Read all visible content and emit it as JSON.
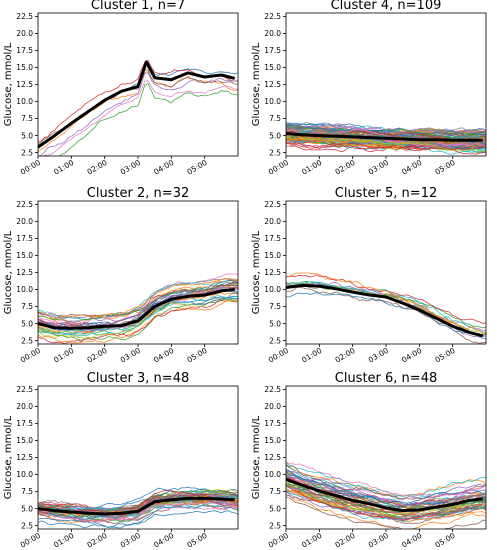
{
  "figure": {
    "background": "#ffffff",
    "mean_line_color": "#000000",
    "member_palette": [
      "#1f77b4",
      "#ff7f0e",
      "#2ca02c",
      "#d62728",
      "#9467bd",
      "#8c564b",
      "#e377c2",
      "#7f7f7f",
      "#bcbd22",
      "#17becf"
    ]
  },
  "chart_data": [
    {
      "type": "line",
      "title": "Cluster 1, n=7",
      "ylabel": "Glucose, mmol/L",
      "xlabel": "",
      "ylim": [
        2.0,
        23.0
      ],
      "yticks": [
        "2.5",
        "5.0",
        "7.5",
        "10.0",
        "12.5",
        "15.0",
        "17.5",
        "20.0",
        "22.5"
      ],
      "xlim": [
        0,
        6
      ],
      "xticks": [
        "00:00",
        "01:00",
        "02:00",
        "03:00",
        "04:00",
        "05:00"
      ],
      "x": [
        0,
        0.5,
        1,
        1.5,
        2,
        2.5,
        3,
        3.25,
        3.5,
        4,
        4.5,
        5,
        5.5,
        5.9
      ],
      "mean": [
        3.3,
        5.0,
        6.8,
        8.5,
        10.2,
        11.5,
        12.2,
        15.8,
        13.5,
        13.2,
        14.2,
        13.6,
        13.9,
        13.4
      ],
      "member_count": 7,
      "member_spread": 1.8
    },
    {
      "type": "line",
      "title": "Cluster 2, n=32",
      "ylabel": "Glucose, mmol/L",
      "xlabel": "",
      "ylim": [
        2.0,
        23.0
      ],
      "yticks": [
        "2.5",
        "5.0",
        "7.5",
        "10.0",
        "12.5",
        "15.0",
        "17.5",
        "20.0",
        "22.5"
      ],
      "xlim": [
        0,
        6
      ],
      "xticks": [
        "00:00",
        "01:00",
        "02:00",
        "03:00",
        "04:00",
        "05:00"
      ],
      "x": [
        0,
        0.5,
        1,
        1.5,
        2,
        2.5,
        3,
        3.5,
        4,
        4.5,
        5,
        5.5,
        5.9
      ],
      "mean": [
        5.0,
        4.4,
        4.3,
        4.4,
        4.6,
        4.7,
        5.4,
        7.5,
        8.6,
        9.0,
        9.2,
        9.8,
        10.0
      ],
      "member_count": 32,
      "member_spread": 1.5
    },
    {
      "type": "line",
      "title": "Cluster 3, n=48",
      "ylabel": "Glucose, mmol/L",
      "xlabel": "",
      "ylim": [
        2.0,
        23.0
      ],
      "yticks": [
        "2.5",
        "5.0",
        "7.5",
        "10.0",
        "12.5",
        "15.0",
        "17.5",
        "20.0",
        "22.5"
      ],
      "xlim": [
        0,
        6
      ],
      "xticks": [
        "00:00",
        "01:00",
        "02:00",
        "03:00",
        "04:00",
        "05:00"
      ],
      "x": [
        0,
        0.5,
        1,
        1.5,
        2,
        2.5,
        3,
        3.5,
        4,
        4.5,
        5,
        5.5,
        5.9
      ],
      "mean": [
        5.0,
        4.7,
        4.5,
        4.3,
        4.2,
        4.3,
        4.6,
        6.0,
        6.3,
        6.5,
        6.5,
        6.4,
        6.3
      ],
      "member_count": 48,
      "member_spread": 1.1
    },
    {
      "type": "line",
      "title": "Cluster 4, n=109",
      "ylabel": "Glucose, mmol/L",
      "xlabel": "",
      "ylim": [
        2.0,
        23.0
      ],
      "yticks": [
        "2.5",
        "5.0",
        "7.5",
        "10.0",
        "12.5",
        "15.0",
        "17.5",
        "20.0",
        "22.5"
      ],
      "xlim": [
        0,
        6
      ],
      "xticks": [
        "00:00",
        "01:00",
        "02:00",
        "03:00",
        "04:00",
        "05:00"
      ],
      "x": [
        0,
        0.5,
        1,
        1.5,
        2,
        2.5,
        3,
        3.5,
        4,
        4.5,
        5,
        5.5,
        5.9
      ],
      "mean": [
        5.3,
        5.1,
        5.0,
        4.9,
        4.8,
        4.7,
        4.6,
        4.5,
        4.4,
        4.4,
        4.3,
        4.3,
        4.3
      ],
      "member_count": 109,
      "member_spread": 0.9
    },
    {
      "type": "line",
      "title": "Cluster 5, n=12",
      "ylabel": "Glucose, mmol/L",
      "xlabel": "",
      "ylim": [
        2.0,
        23.0
      ],
      "yticks": [
        "2.5",
        "5.0",
        "7.5",
        "10.0",
        "12.5",
        "15.0",
        "17.5",
        "20.0",
        "22.5"
      ],
      "xlim": [
        0,
        6
      ],
      "xticks": [
        "00:00",
        "01:00",
        "02:00",
        "03:00",
        "04:00",
        "05:00"
      ],
      "x": [
        0,
        0.5,
        1,
        1.5,
        2,
        2.5,
        3,
        3.5,
        4,
        4.5,
        5,
        5.5,
        5.9
      ],
      "mean": [
        10.3,
        10.6,
        10.5,
        10.1,
        9.6,
        9.2,
        8.9,
        8.0,
        7.0,
        5.8,
        4.6,
        3.7,
        3.2
      ],
      "member_count": 12,
      "member_spread": 1.3
    },
    {
      "type": "line",
      "title": "Cluster 6, n=48",
      "ylabel": "Glucose, mmol/L",
      "xlabel": "",
      "ylim": [
        2.0,
        23.0
      ],
      "yticks": [
        "2.5",
        "5.0",
        "7.5",
        "10.0",
        "12.5",
        "15.0",
        "17.5",
        "20.0",
        "22.5"
      ],
      "xlim": [
        0,
        6
      ],
      "xticks": [
        "00:00",
        "01:00",
        "02:00",
        "03:00",
        "04:00",
        "05:00"
      ],
      "x": [
        0,
        0.5,
        1,
        1.5,
        2,
        2.5,
        3,
        3.5,
        4,
        4.5,
        5,
        5.5,
        5.9
      ],
      "mean": [
        9.3,
        8.4,
        7.6,
        6.9,
        6.2,
        5.7,
        5.1,
        4.7,
        4.8,
        5.2,
        5.6,
        6.2,
        6.4
      ],
      "member_count": 48,
      "member_spread": 1.6
    }
  ]
}
